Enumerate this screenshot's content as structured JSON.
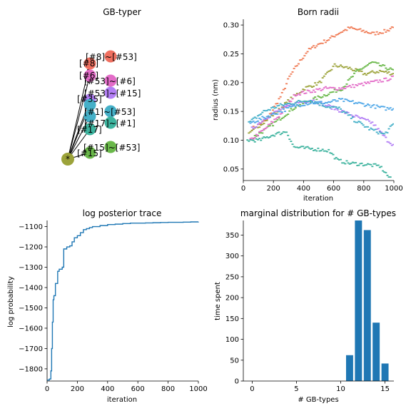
{
  "chart_data": [
    {
      "type": "diagram",
      "title": "GB-typer",
      "root_label": "*",
      "node_labels": [
        "[#8]~[#53]",
        "[#8]",
        "[#6]",
        "[#53]~[#6]",
        "[#53]~[#15]",
        "[#35]",
        "[#1]~[#53]",
        "[#17]~[#1]",
        "[#17]",
        "[#15]~[#53]",
        "[#15]"
      ],
      "colors": [
        "#9ca33a",
        "#f07060",
        "#e36cc8",
        "#b37ff5",
        "#45b0c8",
        "#3db39e",
        "#6ab84a",
        "#50a8e8"
      ]
    },
    {
      "type": "scatter",
      "title": "Born radii",
      "xlabel": "iteration",
      "ylabel": "radius (nm)",
      "xlim": [
        0,
        1000
      ],
      "ylim": [
        0.03,
        0.31
      ],
      "xticks": [
        "0",
        "200",
        "400",
        "600",
        "800",
        "1000"
      ],
      "yticks": [
        "0.05",
        "0.10",
        "0.15",
        "0.20",
        "0.25",
        "0.30"
      ],
      "series": [
        {
          "color": "#f07b55",
          "points": [
            [
              50,
              0.12
            ],
            [
              150,
              0.135
            ],
            [
              250,
              0.18
            ],
            [
              300,
              0.21
            ],
            [
              350,
              0.23
            ],
            [
              420,
              0.255
            ],
            [
              480,
              0.265
            ],
            [
              560,
              0.275
            ],
            [
              620,
              0.285
            ],
            [
              700,
              0.295
            ],
            [
              780,
              0.29
            ],
            [
              860,
              0.285
            ],
            [
              950,
              0.29
            ],
            [
              1000,
              0.3
            ]
          ]
        },
        {
          "color": "#9ca33a",
          "points": [
            [
              30,
              0.11
            ],
            [
              120,
              0.13
            ],
            [
              220,
              0.15
            ],
            [
              300,
              0.17
            ],
            [
              400,
              0.19
            ],
            [
              500,
              0.2
            ],
            [
              600,
              0.23
            ],
            [
              700,
              0.225
            ],
            [
              800,
              0.215
            ],
            [
              900,
              0.22
            ],
            [
              1000,
              0.215
            ]
          ]
        },
        {
          "color": "#6ab84a",
          "points": [
            [
              60,
              0.105
            ],
            [
              150,
              0.12
            ],
            [
              250,
              0.14
            ],
            [
              350,
              0.16
            ],
            [
              450,
              0.17
            ],
            [
              550,
              0.18
            ],
            [
              650,
              0.19
            ],
            [
              750,
              0.22
            ],
            [
              850,
              0.235
            ],
            [
              950,
              0.225
            ],
            [
              1000,
              0.22
            ]
          ]
        },
        {
          "color": "#e36cc8",
          "points": [
            [
              40,
              0.1
            ],
            [
              140,
              0.12
            ],
            [
              240,
              0.145
            ],
            [
              340,
              0.18
            ],
            [
              440,
              0.185
            ],
            [
              540,
              0.19
            ],
            [
              640,
              0.19
            ],
            [
              740,
              0.195
            ],
            [
              840,
              0.2
            ],
            [
              940,
              0.205
            ],
            [
              1000,
              0.21
            ]
          ]
        },
        {
          "color": "#b37ff5",
          "points": [
            [
              50,
              0.12
            ],
            [
              150,
              0.14
            ],
            [
              250,
              0.155
            ],
            [
              350,
              0.165
            ],
            [
              450,
              0.17
            ],
            [
              550,
              0.16
            ],
            [
              650,
              0.15
            ],
            [
              750,
              0.14
            ],
            [
              850,
              0.13
            ],
            [
              950,
              0.1
            ],
            [
              1000,
              0.09
            ]
          ]
        },
        {
          "color": "#45b0c8",
          "points": [
            [
              30,
              0.13
            ],
            [
              130,
              0.15
            ],
            [
              230,
              0.16
            ],
            [
              330,
              0.165
            ],
            [
              430,
              0.17
            ],
            [
              530,
              0.16
            ],
            [
              630,
              0.155
            ],
            [
              730,
              0.135
            ],
            [
              830,
              0.12
            ],
            [
              930,
              0.11
            ],
            [
              1000,
              0.13
            ]
          ]
        },
        {
          "color": "#3db39e",
          "points": [
            [
              20,
              0.1
            ],
            [
              100,
              0.1
            ],
            [
              200,
              0.11
            ],
            [
              280,
              0.115
            ],
            [
              330,
              0.088
            ],
            [
              450,
              0.085
            ],
            [
              560,
              0.082
            ],
            [
              620,
              0.065
            ],
            [
              700,
              0.06
            ],
            [
              800,
              0.058
            ],
            [
              900,
              0.055
            ],
            [
              980,
              0.03
            ]
          ]
        },
        {
          "color": "#50a8e8",
          "points": [
            [
              40,
              0.13
            ],
            [
              140,
              0.14
            ],
            [
              240,
              0.15
            ],
            [
              340,
              0.16
            ],
            [
              440,
              0.165
            ],
            [
              540,
              0.165
            ],
            [
              640,
              0.17
            ],
            [
              740,
              0.165
            ],
            [
              840,
              0.16
            ],
            [
              940,
              0.155
            ],
            [
              1000,
              0.155
            ]
          ]
        }
      ]
    },
    {
      "type": "line",
      "title": "log posterior trace",
      "xlabel": "iteration",
      "ylabel": "log probability",
      "xlim": [
        0,
        1000
      ],
      "ylim": [
        -1860,
        -1070
      ],
      "xticks": [
        "0",
        "200",
        "400",
        "600",
        "800",
        "1000"
      ],
      "yticks": [
        "−1800",
        "−1700",
        "−1600",
        "−1500",
        "−1400",
        "−1300",
        "−1200",
        "−1100"
      ],
      "series": [
        {
          "color": "#1f77b4",
          "x": [
            0,
            15,
            25,
            30,
            35,
            40,
            45,
            55,
            70,
            80,
            100,
            110,
            130,
            150,
            165,
            180,
            200,
            220,
            240,
            260,
            280,
            300,
            350,
            400,
            450,
            500,
            550,
            600,
            650,
            700,
            750,
            800,
            850,
            900,
            950,
            1000
          ],
          "y": [
            -1855,
            -1850,
            -1810,
            -1700,
            -1570,
            -1460,
            -1440,
            -1380,
            -1320,
            -1310,
            -1300,
            -1210,
            -1200,
            -1195,
            -1175,
            -1155,
            -1145,
            -1130,
            -1115,
            -1110,
            -1105,
            -1100,
            -1095,
            -1090,
            -1088,
            -1085,
            -1083,
            -1083,
            -1082,
            -1081,
            -1080,
            -1079,
            -1079,
            -1078,
            -1077,
            -1076
          ]
        }
      ]
    },
    {
      "type": "bar",
      "title": "marginal distribution for # GB-types",
      "xlabel": "# GB-types",
      "ylabel": "time spent",
      "xlim": [
        -1,
        16
      ],
      "ylim": [
        0,
        385
      ],
      "xticks": [
        "0",
        "5",
        "10",
        "15"
      ],
      "yticks": [
        "0",
        "50",
        "100",
        "150",
        "200",
        "250",
        "300",
        "350"
      ],
      "categories": [
        11,
        12,
        13,
        14,
        15
      ],
      "values": [
        62,
        390,
        362,
        140,
        42
      ],
      "color": "#1f77b4"
    }
  ]
}
